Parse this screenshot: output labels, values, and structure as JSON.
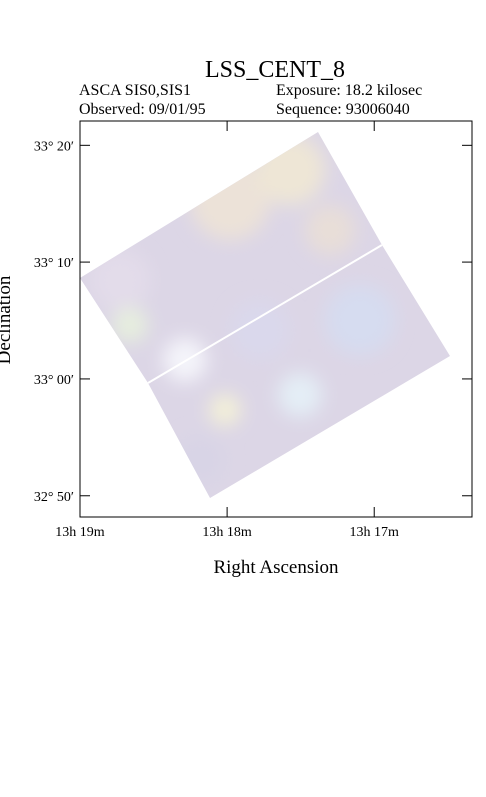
{
  "chart_data": {
    "type": "image",
    "title": "LSS_CENT_8",
    "instrument": "ASCA SIS0,SIS1",
    "exposure": "Exposure: 18.2 kilosec",
    "observed": "Observed: 09/01/95",
    "sequence": "Sequence: 93006040",
    "x_label": "Right Ascension",
    "y_label": "Declination",
    "xlim": [
      13.3167,
      13.2722
    ],
    "xticks": [
      {
        "value": 13.3167,
        "label": "13h 19m"
      },
      {
        "value": 13.3,
        "label": "13h 18m"
      },
      {
        "value": 13.2833,
        "label": "13h 17m"
      }
    ],
    "ylim": [
      32.803,
      33.368
    ],
    "yticks": [
      {
        "value": 33.3333,
        "label": "33° 20′"
      },
      {
        "value": 33.1667,
        "label": "33° 10′"
      },
      {
        "value": 33.0,
        "label": "33° 00′"
      },
      {
        "value": 32.8333,
        "label": "32° 50′"
      }
    ]
  }
}
